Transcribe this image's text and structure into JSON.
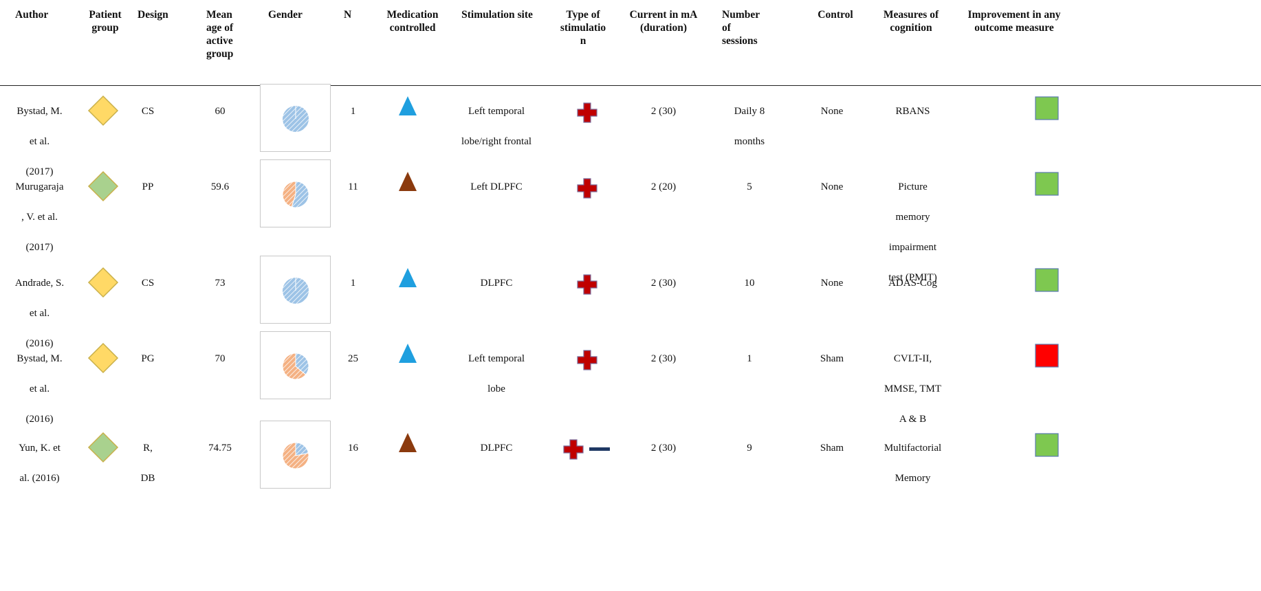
{
  "headers": {
    "author": "Author",
    "patient_group": [
      "Patient",
      "group"
    ],
    "design": "Design",
    "mean_age": [
      "Mean",
      "age of",
      "active",
      "group"
    ],
    "gender": "Gender",
    "n": "N",
    "medication": [
      "Medication",
      "controlled"
    ],
    "site": "Stimulation site",
    "type": [
      "Type of",
      "stimulatio",
      "n"
    ],
    "current": [
      "Current in mA",
      "(duration)"
    ],
    "sessions": [
      "Number",
      "of",
      "sessions"
    ],
    "control": "Control",
    "measures": [
      "Measures of",
      "cognition"
    ],
    "improvement": [
      "Improvement in any",
      "outcome measure"
    ]
  },
  "rows": [
    {
      "author": [
        "Bystad, M.",
        "et al.",
        "(2017)"
      ],
      "patient_group_color": "#ffd966",
      "design": [
        "CS"
      ],
      "age": "60",
      "gender_female_fraction": 0.0,
      "n": "1",
      "medication_color": "#1f9fdf",
      "site": [
        "Left temporal",
        "lobe/right frontal"
      ],
      "stim": [
        "plus-icon"
      ],
      "current": "2 (30)",
      "sessions": [
        "Daily 8",
        "months"
      ],
      "control": "None",
      "measures": [
        "RBANS"
      ],
      "improvement_color": "#7ec850"
    },
    {
      "author": [
        "Murugaraja",
        ", V. et al.",
        "(2017)"
      ],
      "patient_group_color": "#a9d18e",
      "design": [
        "PP"
      ],
      "age": "59.6",
      "gender_female_fraction": 0.45,
      "n": "11",
      "medication_color": "#8b3a0e",
      "site": [
        "Left DLPFC"
      ],
      "stim": [
        "plus-icon"
      ],
      "current": "2 (20)",
      "sessions": [
        "5"
      ],
      "control": "None",
      "measures": [
        "Picture",
        "memory",
        "impairment",
        "test (PMIT)"
      ],
      "improvement_color": "#7ec850"
    },
    {
      "author": [
        "Andrade, S.",
        "et al.",
        "(2016)"
      ],
      "patient_group_color": "#ffd966",
      "design": [
        "CS"
      ],
      "age": "73",
      "gender_female_fraction": 0.0,
      "n": "1",
      "medication_color": "#1f9fdf",
      "site": [
        "DLPFC"
      ],
      "stim": [
        "plus-icon"
      ],
      "current": "2 (30)",
      "sessions": [
        "10"
      ],
      "control": "None",
      "measures": [
        "ADAS-Cog"
      ],
      "improvement_color": "#7ec850"
    },
    {
      "author": [
        "Bystad, M.",
        "et al.",
        "(2016)"
      ],
      "patient_group_color": "#ffd966",
      "design": [
        "PG"
      ],
      "age": "70",
      "gender_female_fraction": 0.64,
      "n": "25",
      "medication_color": "#1f9fdf",
      "site": [
        "Left temporal",
        "lobe"
      ],
      "stim": [
        "plus-icon"
      ],
      "current": "2 (30)",
      "sessions": [
        "1"
      ],
      "control": "Sham",
      "measures": [
        "CVLT-II,",
        "MMSE, TMT",
        "A & B"
      ],
      "improvement_color": "#ff0000"
    },
    {
      "author": [
        "Yun, K. et",
        "al. (2016)"
      ],
      "patient_group_color": "#a9d18e",
      "design": [
        "R,",
        "DB"
      ],
      "age": "74.75",
      "gender_female_fraction": 0.78,
      "n": "16",
      "medication_color": "#8b3a0e",
      "site": [
        "DLPFC"
      ],
      "stim": [
        "plus-icon",
        "minus-icon"
      ],
      "current": "2 (30)",
      "sessions": [
        "9"
      ],
      "control": "Sham",
      "measures": [
        "Multifactorial",
        "Memory"
      ],
      "improvement_color": "#7ec850"
    }
  ],
  "colors": {
    "male_slice": "#9dc3e6",
    "female_slice": "#f4b183",
    "plus": "#c00000",
    "minus": "#1f3864"
  }
}
